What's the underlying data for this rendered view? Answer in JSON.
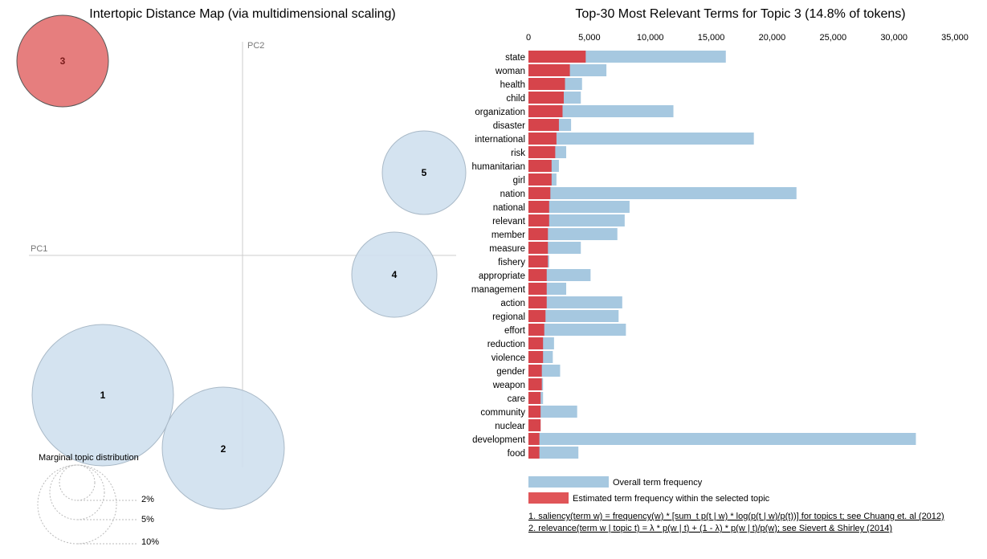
{
  "left_title": "Intertopic Distance Map (via multidimensional scaling)",
  "right_title": "Top-30 Most Relevant Terms for Topic 3 (14.8% of tokens)",
  "pc1_label": "PC1",
  "pc2_label": "PC2",
  "marginal_title": "Marginal topic distribution",
  "marginal_levels": [
    "2%",
    "5%",
    "10%"
  ],
  "legend": {
    "overall": "Overall term frequency",
    "estimated": "Estimated term frequency within the selected topic"
  },
  "notes": [
    "1. saliency(term w) = frequency(w) * [sum_t p(t | w) * log(p(t | w)/p(t))] for topics t; see Chuang et. al (2012)",
    "2. relevance(term w | topic t) = λ * p(w | t) + (1 - λ) * p(w | t)/p(w); see Sievert & Shirley (2014)"
  ],
  "colors": {
    "overall": "#a6c8e0",
    "estimated": "#d6444b",
    "selected_topic": "#e67e7e",
    "topic": "#cfe0ee"
  },
  "topics": [
    {
      "label": "1",
      "selected": false
    },
    {
      "label": "2",
      "selected": false
    },
    {
      "label": "3",
      "selected": true
    },
    {
      "label": "4",
      "selected": false
    },
    {
      "label": "5",
      "selected": false
    }
  ],
  "chart_data": {
    "type": "bar",
    "orientation": "horizontal",
    "xlim": [
      0,
      35000
    ],
    "xticks": [
      "0",
      "5,000",
      "10,000",
      "15,000",
      "20,000",
      "25,000",
      "30,000",
      "35,000"
    ],
    "categories": [
      "state",
      "woman",
      "health",
      "child",
      "organization",
      "disaster",
      "international",
      "risk",
      "humanitarian",
      "girl",
      "nation",
      "national",
      "relevant",
      "member",
      "measure",
      "fishery",
      "appropriate",
      "management",
      "action",
      "regional",
      "effort",
      "reduction",
      "violence",
      "gender",
      "weapon",
      "care",
      "community",
      "nuclear",
      "development",
      "food"
    ],
    "series": [
      {
        "name": "Overall term frequency",
        "values": [
          16200,
          6400,
          4400,
          4300,
          11900,
          3500,
          18500,
          3100,
          2500,
          2300,
          22000,
          8300,
          7900,
          7300,
          4300,
          1700,
          5100,
          3100,
          7700,
          7400,
          8000,
          2100,
          2000,
          2600,
          1200,
          1200,
          4000,
          1000,
          31800,
          4100
        ]
      },
      {
        "name": "Estimated term frequency within the selected topic",
        "values": [
          4700,
          3400,
          3000,
          2900,
          2800,
          2500,
          2300,
          2200,
          1900,
          1900,
          1800,
          1700,
          1700,
          1600,
          1600,
          1600,
          1500,
          1500,
          1500,
          1400,
          1300,
          1200,
          1200,
          1100,
          1100,
          1000,
          1000,
          1000,
          900,
          900
        ]
      }
    ]
  }
}
